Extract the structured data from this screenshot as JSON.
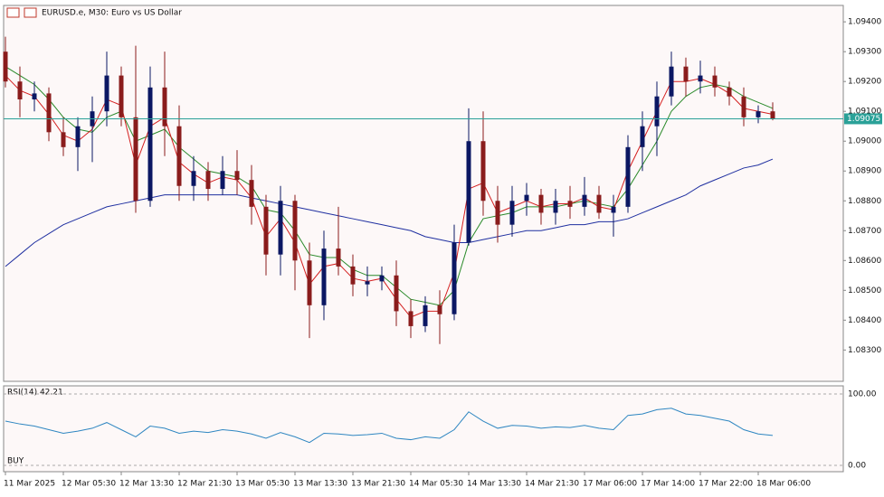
{
  "chart_data": {
    "type": "candlestick",
    "title": "EURUSD.e, M30:  Euro vs US Dollar",
    "background": "#fdf8f8",
    "up_color": "#0b1763",
    "down_color": "#8a1c1c",
    "categories": [
      "11 Mar 2025",
      null,
      null,
      null,
      "12 Mar 05:30",
      null,
      null,
      null,
      "12 Mar 13:30",
      null,
      null,
      null,
      "12 Mar 21:30",
      null,
      null,
      null,
      "13 Mar 05:30",
      null,
      null,
      null,
      "13 Mar 13:30",
      null,
      null,
      null,
      "13 Mar 21:30",
      null,
      null,
      null,
      "14 Mar 05:30",
      null,
      null,
      null,
      "14 Mar 13:30",
      null,
      null,
      null,
      "14 Mar 21:30",
      null,
      null,
      null,
      "17 Mar 06:00",
      null,
      null,
      null,
      "17 Mar 14:00",
      null,
      null,
      null,
      "17 Mar 22:00",
      null,
      null,
      null,
      "18 Mar 06:00",
      null
    ],
    "open": [
      1.093,
      1.092,
      1.0914,
      1.0916,
      1.0903,
      1.0898,
      1.0905,
      1.091,
      1.0922,
      1.0908,
      1.088,
      1.0918,
      1.0905,
      1.0885,
      1.089,
      1.0884,
      1.089,
      1.0887,
      1.0878,
      1.0862,
      1.088,
      1.086,
      1.0845,
      1.0864,
      1.0858,
      1.0852,
      1.0853,
      1.0855,
      1.0843,
      1.0838,
      1.0845,
      1.0842,
      1.0866,
      1.09,
      1.088,
      1.0872,
      1.088,
      1.0882,
      1.0876,
      1.088,
      1.0878,
      1.0882,
      1.0876,
      1.0878,
      1.0898,
      1.0905,
      1.0915,
      1.0925,
      1.092,
      1.0922,
      1.0918,
      1.0915,
      1.0908,
      1.091
    ],
    "high": [
      1.0935,
      1.0925,
      1.092,
      1.0918,
      1.0908,
      1.0908,
      1.0915,
      1.093,
      1.0925,
      1.0932,
      1.0925,
      1.093,
      1.0912,
      1.0895,
      1.0893,
      1.0895,
      1.0897,
      1.0892,
      1.0882,
      1.0885,
      1.0882,
      1.0866,
      1.087,
      1.0878,
      1.0862,
      1.0858,
      1.0858,
      1.086,
      1.0847,
      1.0848,
      1.085,
      1.0872,
      1.0911,
      1.091,
      1.0885,
      1.0885,
      1.0886,
      1.0884,
      1.0884,
      1.0885,
      1.0888,
      1.0885,
      1.0882,
      1.0902,
      1.091,
      1.092,
      1.093,
      1.0928,
      1.0927,
      1.0925,
      1.092,
      1.0918,
      1.0912,
      1.0913
    ],
    "low": [
      1.0918,
      1.0908,
      1.091,
      1.09,
      1.0895,
      1.089,
      1.0893,
      1.0905,
      1.0905,
      1.0876,
      1.0878,
      1.0895,
      1.088,
      1.088,
      1.088,
      1.0882,
      1.0882,
      1.0872,
      1.0855,
      1.0855,
      1.085,
      1.0834,
      1.084,
      1.0855,
      1.0848,
      1.0848,
      1.085,
      1.0838,
      1.0834,
      1.0836,
      1.0832,
      1.084,
      1.0865,
      1.0875,
      1.0866,
      1.0868,
      1.0875,
      1.0872,
      1.0872,
      1.0874,
      1.0875,
      1.0874,
      1.0868,
      1.0876,
      1.089,
      1.0895,
      1.0912,
      1.0915,
      1.0916,
      1.0915,
      1.0912,
      1.0905,
      1.0906,
      1.0907
    ],
    "close": [
      1.092,
      1.0914,
      1.0916,
      1.0903,
      1.0898,
      1.0905,
      1.091,
      1.0922,
      1.0908,
      1.088,
      1.0918,
      1.0905,
      1.0885,
      1.089,
      1.0884,
      1.089,
      1.0887,
      1.0878,
      1.0862,
      1.088,
      1.086,
      1.0845,
      1.0864,
      1.0858,
      1.0852,
      1.0853,
      1.0855,
      1.0843,
      1.0838,
      1.0845,
      1.0842,
      1.0866,
      1.09,
      1.088,
      1.0872,
      1.088,
      1.0882,
      1.0876,
      1.088,
      1.0878,
      1.0882,
      1.0876,
      1.0878,
      1.0898,
      1.0905,
      1.0915,
      1.0925,
      1.092,
      1.0922,
      1.0918,
      1.0915,
      1.0908,
      1.091,
      1.09075
    ],
    "series": [
      {
        "color": "#1f2fa0",
        "values": [
          1.0858,
          1.0862,
          1.0866,
          1.0869,
          1.0872,
          1.0874,
          1.0876,
          1.0878,
          1.0879,
          1.088,
          1.0881,
          1.0882,
          1.0882,
          1.0882,
          1.0882,
          1.0882,
          1.0882,
          1.0881,
          1.088,
          1.0879,
          1.0878,
          1.0877,
          1.0876,
          1.0875,
          1.0874,
          1.0873,
          1.0872,
          1.0871,
          1.087,
          1.0868,
          1.0867,
          1.0866,
          1.0866,
          1.0867,
          1.0868,
          1.0869,
          1.087,
          1.087,
          1.0871,
          1.0872,
          1.0872,
          1.0873,
          1.0873,
          1.0874,
          1.0876,
          1.0878,
          1.088,
          1.0882,
          1.0885,
          1.0887,
          1.0889,
          1.0891,
          1.0892,
          1.0894
        ]
      },
      {
        "color": "#2a8a2a",
        "values": [
          1.0925,
          1.0922,
          1.0919,
          1.0914,
          1.0908,
          1.0904,
          1.0903,
          1.0908,
          1.091,
          1.09,
          1.0902,
          1.0904,
          1.0898,
          1.0894,
          1.089,
          1.0889,
          1.0888,
          1.0885,
          1.0877,
          1.0876,
          1.087,
          1.0862,
          1.0861,
          1.0861,
          1.0857,
          1.0855,
          1.0855,
          1.0851,
          1.0847,
          1.0846,
          1.0845,
          1.085,
          1.0866,
          1.0874,
          1.0875,
          1.0876,
          1.0878,
          1.0878,
          1.0878,
          1.0879,
          1.088,
          1.0879,
          1.0878,
          1.0884,
          1.0892,
          1.09,
          1.091,
          1.0915,
          1.0918,
          1.0919,
          1.0918,
          1.0915,
          1.0913,
          1.0911
        ]
      },
      {
        "color": "#d42020",
        "values": [
          1.0922,
          1.0917,
          1.0915,
          1.0909,
          1.0902,
          1.09,
          1.0904,
          1.0914,
          1.0912,
          1.0892,
          1.0905,
          1.0908,
          1.0893,
          1.0889,
          1.0886,
          1.0888,
          1.0887,
          1.0881,
          1.0868,
          1.0874,
          1.0866,
          1.0852,
          1.0858,
          1.0859,
          1.0854,
          1.0853,
          1.0854,
          1.0847,
          1.0841,
          1.0843,
          1.0843,
          1.0856,
          1.0884,
          1.0886,
          1.0876,
          1.0878,
          1.088,
          1.0878,
          1.0879,
          1.0879,
          1.0881,
          1.0878,
          1.0877,
          1.089,
          1.09,
          1.091,
          1.092,
          1.092,
          1.0921,
          1.0919,
          1.0916,
          1.0911,
          1.091,
          1.0909
        ]
      }
    ],
    "ylim": [
      1.08195,
      1.09455
    ],
    "yticks": [
      {
        "value": 1.083,
        "label": "1.08300"
      },
      {
        "value": 1.084,
        "label": "1.08400"
      },
      {
        "value": 1.085,
        "label": "1.08500"
      },
      {
        "value": 1.086,
        "label": "1.08600"
      },
      {
        "value": 1.087,
        "label": "1.08700"
      },
      {
        "value": 1.088,
        "label": "1.08800"
      },
      {
        "value": 1.089,
        "label": "1.08900"
      },
      {
        "value": 1.09,
        "label": "1.09000"
      },
      {
        "value": 1.091,
        "label": "1.09100"
      },
      {
        "value": 1.092,
        "label": "1.09200"
      },
      {
        "value": 1.093,
        "label": "1.09300"
      },
      {
        "value": 1.094,
        "label": "1.09400"
      }
    ],
    "last_price": 1.09075,
    "last_price_color": "#2aa198",
    "rsi": {
      "title": "RSI(14) 42.21",
      "color": "#2e86c1",
      "signal": "BUY",
      "values": [
        62,
        58,
        55,
        50,
        45,
        48,
        52,
        60,
        50,
        40,
        55,
        52,
        45,
        48,
        46,
        50,
        48,
        44,
        38,
        46,
        40,
        32,
        45,
        44,
        42,
        43,
        45,
        38,
        36,
        40,
        38,
        50,
        75,
        62,
        52,
        56,
        55,
        52,
        54,
        53,
        56,
        52,
        50,
        70,
        72,
        78,
        80,
        72,
        70,
        66,
        62,
        50,
        44,
        42
      ],
      "ylim": [
        0,
        100
      ],
      "yticks": [
        {
          "value": 100,
          "label": "100.00"
        },
        {
          "value": 0,
          "label": "0.00"
        }
      ]
    }
  }
}
